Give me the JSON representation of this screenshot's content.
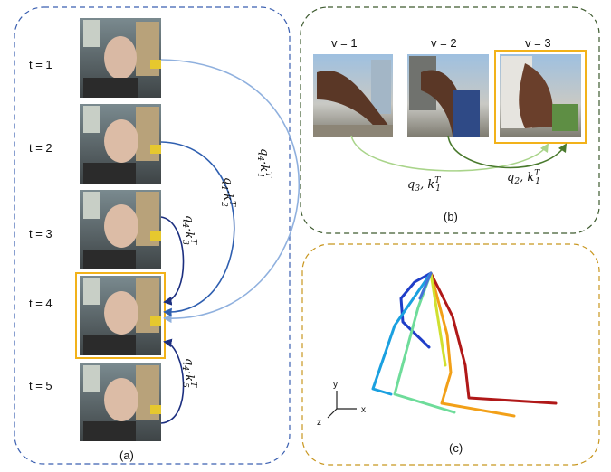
{
  "panel_a": {
    "caption": "(a)",
    "frames": [
      {
        "label": "t = 1"
      },
      {
        "label": "t = 2"
      },
      {
        "label": "t = 3"
      },
      {
        "label": "t = 4"
      },
      {
        "label": "t = 5"
      }
    ],
    "attention_labels": [
      {
        "q": "q",
        "q_sub": "4",
        "k": "k",
        "k_sub": "1",
        "k_sup": "T"
      },
      {
        "q": "q",
        "q_sub": "4",
        "k": "k",
        "k_sub": "2",
        "k_sup": "T"
      },
      {
        "q": "q",
        "q_sub": "4",
        "k": "k",
        "k_sub": "3",
        "k_sup": "T"
      },
      {
        "q": "q",
        "q_sub": "4",
        "k": "k",
        "k_sub": "5",
        "k_sup": "T"
      }
    ]
  },
  "panel_b": {
    "caption": "(b)",
    "views": [
      {
        "label": "v = 1"
      },
      {
        "label": "v = 2"
      },
      {
        "label": "v = 3"
      }
    ],
    "attention_labels": [
      {
        "q": "q",
        "q_sub": "3",
        "k": "k",
        "k_sub": "1",
        "k_sup": "T"
      },
      {
        "q": "q",
        "q_sub": "2",
        "k": "k",
        "k_sub": "1",
        "k_sup": "T"
      }
    ]
  },
  "panel_c": {
    "caption": "(c)",
    "axes": {
      "y": "y",
      "x": "x",
      "z": "z"
    }
  },
  "colors": {
    "panel_a_border": "#3a5fb0",
    "panel_b_border": "#3d5a2e",
    "panel_c_border": "#c8961e",
    "highlight": "#f2b21a"
  }
}
